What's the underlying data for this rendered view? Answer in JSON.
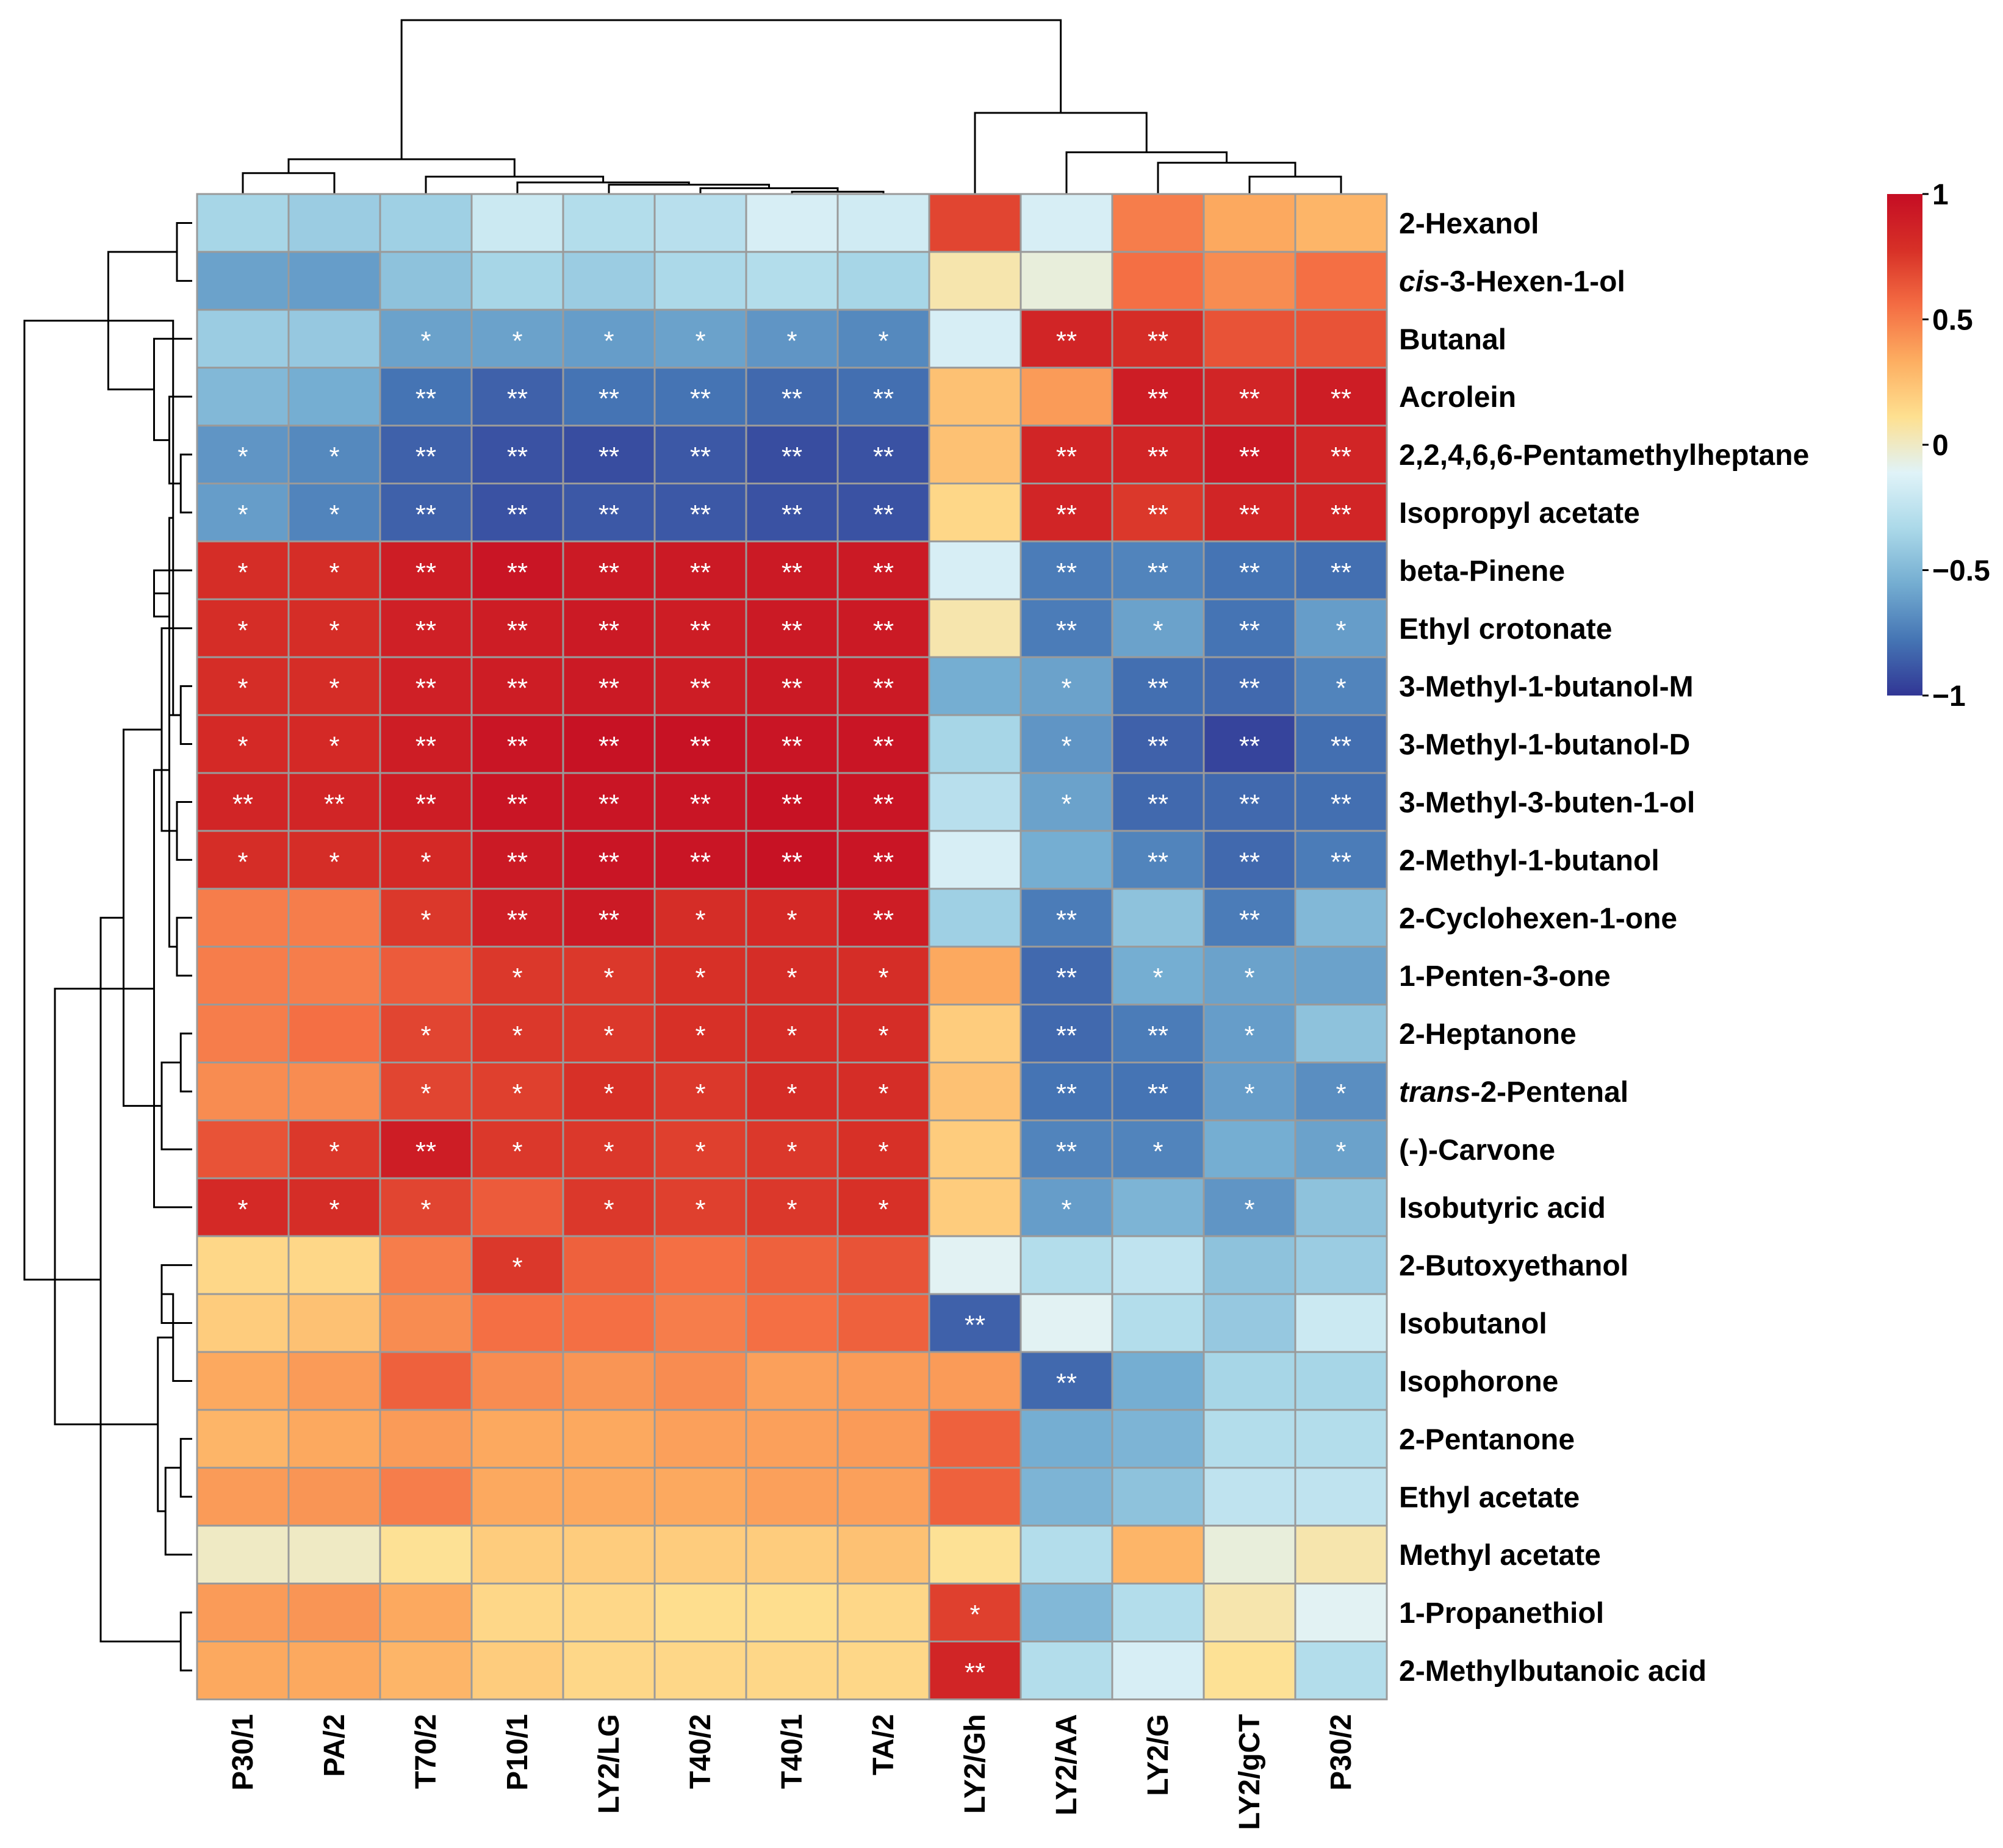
{
  "chart_data": {
    "type": "heatmap",
    "title": "",
    "columns": [
      "P30/1",
      "PA/2",
      "T70/2",
      "P10/1",
      "LY2/LG",
      "T40/2",
      "T40/1",
      "TA/2",
      "LY2/Gh",
      "LY2/AA",
      "LY2/G",
      "LY2/gCT",
      "P30/2"
    ],
    "rows": [
      {
        "name": "2-Hexanol",
        "name_parts": [
          [
            "2-Hexanol",
            false
          ]
        ]
      },
      {
        "name": "cis-3-Hexen-1-ol",
        "name_parts": [
          [
            "cis",
            true
          ],
          [
            "-3-Hexen-1-ol",
            false
          ]
        ]
      },
      {
        "name": "Butanal",
        "name_parts": [
          [
            "Butanal",
            false
          ]
        ]
      },
      {
        "name": "Acrolein",
        "name_parts": [
          [
            "Acrolein",
            false
          ]
        ]
      },
      {
        "name": "2,2,4,6,6-Pentamethylheptane",
        "name_parts": [
          [
            "2,2,4,6,6-Pentamethylheptane",
            false
          ]
        ]
      },
      {
        "name": "Isopropyl acetate",
        "name_parts": [
          [
            "Isopropyl acetate",
            false
          ]
        ]
      },
      {
        "name": "beta-Pinene",
        "name_parts": [
          [
            "beta-Pinene",
            false
          ]
        ]
      },
      {
        "name": "Ethyl crotonate",
        "name_parts": [
          [
            "Ethyl crotonate",
            false
          ]
        ]
      },
      {
        "name": "3-Methyl-1-butanol-M",
        "name_parts": [
          [
            "3-Methyl-1-butanol-M",
            false
          ]
        ]
      },
      {
        "name": "3-Methyl-1-butanol-D",
        "name_parts": [
          [
            "3-Methyl-1-butanol-D",
            false
          ]
        ]
      },
      {
        "name": "3-Methyl-3-buten-1-ol",
        "name_parts": [
          [
            "3-Methyl-3-buten-1-ol",
            false
          ]
        ]
      },
      {
        "name": "2-Methyl-1-butanol",
        "name_parts": [
          [
            "2-Methyl-1-butanol",
            false
          ]
        ]
      },
      {
        "name": "2-Cyclohexen-1-one",
        "name_parts": [
          [
            "2-Cyclohexen-1-one",
            false
          ]
        ]
      },
      {
        "name": "1-Penten-3-one",
        "name_parts": [
          [
            "1-Penten-3-one",
            false
          ]
        ]
      },
      {
        "name": "2-Heptanone",
        "name_parts": [
          [
            "2-Heptanone",
            false
          ]
        ]
      },
      {
        "name": "trans-2-Pentenal",
        "name_parts": [
          [
            "trans",
            true
          ],
          [
            "-2-Pentenal",
            false
          ]
        ]
      },
      {
        "name": "(-)-Carvone",
        "name_parts": [
          [
            "(-)-Carvone",
            false
          ]
        ]
      },
      {
        "name": "Isobutyric acid",
        "name_parts": [
          [
            "Isobutyric acid",
            false
          ]
        ]
      },
      {
        "name": "2-Butoxyethanol",
        "name_parts": [
          [
            "2-Butoxyethanol",
            false
          ]
        ]
      },
      {
        "name": "Isobutanol",
        "name_parts": [
          [
            "Isobutanol",
            false
          ]
        ]
      },
      {
        "name": "Isophorone",
        "name_parts": [
          [
            "Isophorone",
            false
          ]
        ]
      },
      {
        "name": "2-Pentanone",
        "name_parts": [
          [
            "2-Pentanone",
            false
          ]
        ]
      },
      {
        "name": "Ethyl acetate",
        "name_parts": [
          [
            "Ethyl acetate",
            false
          ]
        ]
      },
      {
        "name": "Methyl acetate",
        "name_parts": [
          [
            "Methyl acetate",
            false
          ]
        ]
      },
      {
        "name": "1-Propanethiol",
        "name_parts": [
          [
            "1-Propanethiol",
            false
          ]
        ]
      },
      {
        "name": "2-Methylbutanoic acid",
        "name_parts": [
          [
            "2-Methylbutanoic acid",
            false
          ]
        ]
      }
    ],
    "values": [
      [
        -0.35,
        -0.4,
        -0.38,
        -0.2,
        -0.3,
        -0.28,
        -0.15,
        -0.18,
        0.7,
        -0.15,
        0.5,
        0.35,
        0.3
      ],
      [
        -0.6,
        -0.62,
        -0.45,
        -0.35,
        -0.4,
        -0.33,
        -0.3,
        -0.35,
        0.05,
        -0.05,
        0.55,
        0.45,
        0.55
      ],
      [
        -0.4,
        -0.42,
        -0.6,
        -0.6,
        -0.62,
        -0.6,
        -0.65,
        -0.7,
        -0.15,
        0.85,
        0.8,
        0.65,
        0.65
      ],
      [
        -0.5,
        -0.55,
        -0.78,
        -0.85,
        -0.78,
        -0.78,
        -0.82,
        -0.8,
        0.25,
        0.4,
        0.9,
        0.85,
        0.9
      ],
      [
        -0.65,
        -0.7,
        -0.85,
        -0.9,
        -0.92,
        -0.88,
        -0.92,
        -0.9,
        0.25,
        0.85,
        0.85,
        0.92,
        0.85
      ],
      [
        -0.62,
        -0.72,
        -0.85,
        -0.9,
        -0.88,
        -0.88,
        -0.9,
        -0.9,
        0.15,
        0.85,
        0.75,
        0.85,
        0.85
      ],
      [
        0.8,
        0.8,
        0.9,
        0.95,
        0.92,
        0.92,
        0.92,
        0.92,
        -0.15,
        -0.75,
        -0.72,
        -0.78,
        -0.8
      ],
      [
        0.8,
        0.8,
        0.88,
        0.9,
        0.92,
        0.9,
        0.92,
        0.92,
        0.05,
        -0.75,
        -0.6,
        -0.78,
        -0.62
      ],
      [
        0.8,
        0.8,
        0.88,
        0.9,
        0.92,
        0.9,
        0.92,
        0.92,
        -0.55,
        -0.6,
        -0.8,
        -0.82,
        -0.72
      ],
      [
        0.82,
        0.82,
        0.9,
        0.95,
        0.97,
        0.97,
        0.95,
        0.95,
        -0.35,
        -0.65,
        -0.85,
        -0.95,
        -0.8
      ],
      [
        0.85,
        0.85,
        0.9,
        0.95,
        0.95,
        0.95,
        0.97,
        0.95,
        -0.28,
        -0.6,
        -0.82,
        -0.82,
        -0.8
      ],
      [
        0.8,
        0.8,
        0.82,
        0.92,
        0.95,
        0.95,
        0.97,
        0.95,
        -0.15,
        -0.55,
        -0.72,
        -0.82,
        -0.75
      ],
      [
        0.5,
        0.5,
        0.75,
        0.88,
        0.92,
        0.8,
        0.82,
        0.9,
        -0.38,
        -0.75,
        -0.45,
        -0.75,
        -0.5
      ],
      [
        0.5,
        0.5,
        0.62,
        0.75,
        0.75,
        0.78,
        0.8,
        0.8,
        0.35,
        -0.82,
        -0.55,
        -0.6,
        -0.6
      ],
      [
        0.5,
        0.55,
        0.7,
        0.75,
        0.75,
        0.78,
        0.8,
        0.8,
        0.2,
        -0.82,
        -0.75,
        -0.62,
        -0.45
      ],
      [
        0.45,
        0.45,
        0.7,
        0.72,
        0.78,
        0.75,
        0.8,
        0.8,
        0.25,
        -0.78,
        -0.78,
        -0.62,
        -0.68
      ],
      [
        0.65,
        0.75,
        0.9,
        0.75,
        0.75,
        0.72,
        0.75,
        0.78,
        0.2,
        -0.72,
        -0.72,
        -0.55,
        -0.6
      ],
      [
        0.82,
        0.8,
        0.7,
        0.62,
        0.75,
        0.72,
        0.75,
        0.78,
        0.2,
        -0.62,
        -0.52,
        -0.65,
        -0.45
      ],
      [
        0.15,
        0.15,
        0.5,
        0.75,
        0.6,
        0.55,
        0.6,
        0.65,
        -0.1,
        -0.3,
        -0.25,
        -0.45,
        -0.4
      ],
      [
        0.2,
        0.25,
        0.45,
        0.55,
        0.55,
        0.5,
        0.55,
        0.6,
        -0.85,
        -0.1,
        -0.3,
        -0.42,
        -0.2
      ],
      [
        0.35,
        0.4,
        0.6,
        0.45,
        0.42,
        0.45,
        0.38,
        0.4,
        0.4,
        -0.82,
        -0.55,
        -0.35,
        -0.35
      ],
      [
        0.3,
        0.35,
        0.4,
        0.35,
        0.35,
        0.38,
        0.38,
        0.4,
        0.6,
        -0.55,
        -0.52,
        -0.3,
        -0.3
      ],
      [
        0.4,
        0.42,
        0.5,
        0.35,
        0.35,
        0.35,
        0.38,
        0.38,
        0.6,
        -0.52,
        -0.45,
        -0.25,
        -0.25
      ],
      [
        0.0,
        0.0,
        0.1,
        0.2,
        0.2,
        0.2,
        0.2,
        0.25,
        0.1,
        -0.3,
        0.3,
        -0.05,
        0.05
      ],
      [
        0.4,
        0.42,
        0.35,
        0.15,
        0.15,
        0.12,
        0.12,
        0.15,
        0.72,
        -0.5,
        -0.3,
        0.05,
        -0.1
      ],
      [
        0.35,
        0.35,
        0.3,
        0.2,
        0.15,
        0.15,
        0.15,
        0.15,
        0.85,
        -0.3,
        -0.15,
        0.1,
        -0.3
      ]
    ],
    "significance": [
      [
        "",
        "",
        "",
        "",
        "",
        "",
        "",
        "",
        "",
        "",
        "",
        "",
        ""
      ],
      [
        "",
        "",
        "",
        "",
        "",
        "",
        "",
        "",
        "",
        "",
        "",
        "",
        ""
      ],
      [
        "",
        "",
        "*",
        "*",
        "*",
        "*",
        "*",
        "*",
        "",
        "**",
        "**",
        "",
        ""
      ],
      [
        "",
        "",
        "**",
        "**",
        "**",
        "**",
        "**",
        "**",
        "",
        "",
        "**",
        "**",
        "**"
      ],
      [
        "*",
        "*",
        "**",
        "**",
        "**",
        "**",
        "**",
        "**",
        "",
        "**",
        "**",
        "**",
        "**"
      ],
      [
        "*",
        "*",
        "**",
        "**",
        "**",
        "**",
        "**",
        "**",
        "",
        "**",
        "**",
        "**",
        "**"
      ],
      [
        "*",
        "*",
        "**",
        "**",
        "**",
        "**",
        "**",
        "**",
        "",
        "**",
        "**",
        "**",
        "**"
      ],
      [
        "*",
        "*",
        "**",
        "**",
        "**",
        "**",
        "**",
        "**",
        "",
        "**",
        "*",
        "**",
        "*"
      ],
      [
        "*",
        "*",
        "**",
        "**",
        "**",
        "**",
        "**",
        "**",
        "",
        "*",
        "**",
        "**",
        "*"
      ],
      [
        "*",
        "*",
        "**",
        "**",
        "**",
        "**",
        "**",
        "**",
        "",
        "*",
        "**",
        "**",
        "**"
      ],
      [
        "**",
        "**",
        "**",
        "**",
        "**",
        "**",
        "**",
        "**",
        "",
        "*",
        "**",
        "**",
        "**"
      ],
      [
        "*",
        "*",
        "*",
        "**",
        "**",
        "**",
        "**",
        "**",
        "",
        "",
        "**",
        "**",
        "**"
      ],
      [
        "",
        "",
        "*",
        "**",
        "**",
        "*",
        "*",
        "**",
        "",
        "**",
        "",
        "**",
        ""
      ],
      [
        "",
        "",
        "",
        "*",
        "*",
        "*",
        "*",
        "*",
        "",
        "**",
        "*",
        "*",
        ""
      ],
      [
        "",
        "",
        "*",
        "*",
        "*",
        "*",
        "*",
        "*",
        "",
        "**",
        "**",
        "*",
        ""
      ],
      [
        "",
        "",
        "*",
        "*",
        "*",
        "*",
        "*",
        "*",
        "",
        "**",
        "**",
        "*",
        "*"
      ],
      [
        "",
        "*",
        "**",
        "*",
        "*",
        "*",
        "*",
        "*",
        "",
        "**",
        "*",
        "",
        "*"
      ],
      [
        "*",
        "*",
        "*",
        "",
        "*",
        "*",
        "*",
        "*",
        "",
        "*",
        "",
        "*",
        ""
      ],
      [
        "",
        "",
        "",
        "*",
        "",
        "",
        "",
        "",
        "",
        "",
        "",
        "",
        ""
      ],
      [
        "",
        "",
        "",
        "",
        "",
        "",
        "",
        "",
        "**",
        "",
        "",
        "",
        ""
      ],
      [
        "",
        "",
        "",
        "",
        "",
        "",
        "",
        "",
        "",
        "**",
        "",
        "",
        ""
      ],
      [
        "",
        "",
        "",
        "",
        "",
        "",
        "",
        "",
        "",
        "",
        "",
        "",
        ""
      ],
      [
        "",
        "",
        "",
        "",
        "",
        "",
        "",
        "",
        "",
        "",
        "",
        "",
        ""
      ],
      [
        "",
        "",
        "",
        "",
        "",
        "",
        "",
        "",
        "",
        "",
        "",
        "",
        ""
      ],
      [
        "",
        "",
        "",
        "",
        "",
        "",
        "",
        "",
        "*",
        "",
        "",
        "",
        ""
      ],
      [
        "",
        "",
        "",
        "",
        "",
        "",
        "",
        "",
        "**",
        "",
        "",
        "",
        ""
      ]
    ],
    "range": [
      -1,
      1
    ],
    "legend": {
      "placement": "top-right",
      "ticks": [
        1,
        0.5,
        0,
        -0.5,
        -1
      ],
      "tick_labels": [
        "1",
        "0.5",
        "0",
        "−0.5",
        "−1"
      ],
      "colors": [
        "#313695",
        "#4575b4",
        "#74add1",
        "#abd9e9",
        "#e0f3f8",
        "#fee090",
        "#fdae61",
        "#f46d43",
        "#d73027",
        "#c50d24"
      ]
    },
    "column_dendrogram": "top",
    "row_dendrogram": "left",
    "grid": true
  }
}
